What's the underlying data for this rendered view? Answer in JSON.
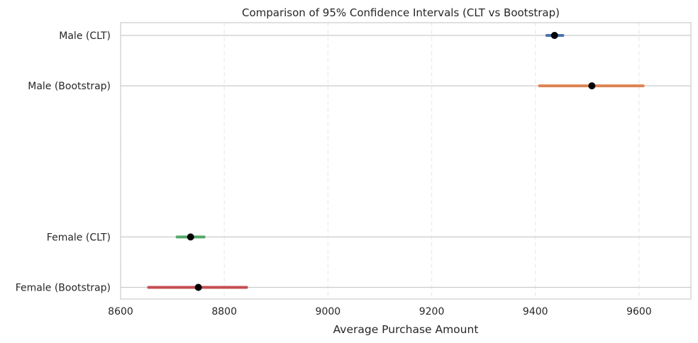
{
  "chart_data": {
    "type": "errorbar",
    "title": "Comparison of 95% Confidence Intervals (CLT vs Bootstrap)",
    "xlabel": "Average Purchase Amount",
    "ylabel": "",
    "xlim": [
      8600,
      9700
    ],
    "xticks": [
      8600,
      8800,
      9000,
      9200,
      9400,
      9600
    ],
    "categories": [
      "Male (CLT)",
      "Male (Bootstrap)",
      "Female (CLT)",
      "Female (Bootstrap)"
    ],
    "y_positions": [
      0,
      1,
      4,
      5
    ],
    "intervals": [
      {
        "label": "Male (CLT)",
        "low": 9422,
        "mean": 9437,
        "high": 9453,
        "color": "#4c72b0"
      },
      {
        "label": "Male (Bootstrap)",
        "low": 9408,
        "mean": 9509,
        "high": 9608,
        "color": "#dd8452"
      },
      {
        "label": "Female (CLT)",
        "low": 8709,
        "mean": 8735,
        "high": 8761,
        "color": "#55a868"
      },
      {
        "label": "Female (Bootstrap)",
        "low": 8654,
        "mean": 8750,
        "high": 8843,
        "color": "#c44e52"
      }
    ],
    "marker_color": "#000000",
    "grid": {
      "x": "dashed",
      "y": "solid"
    }
  }
}
